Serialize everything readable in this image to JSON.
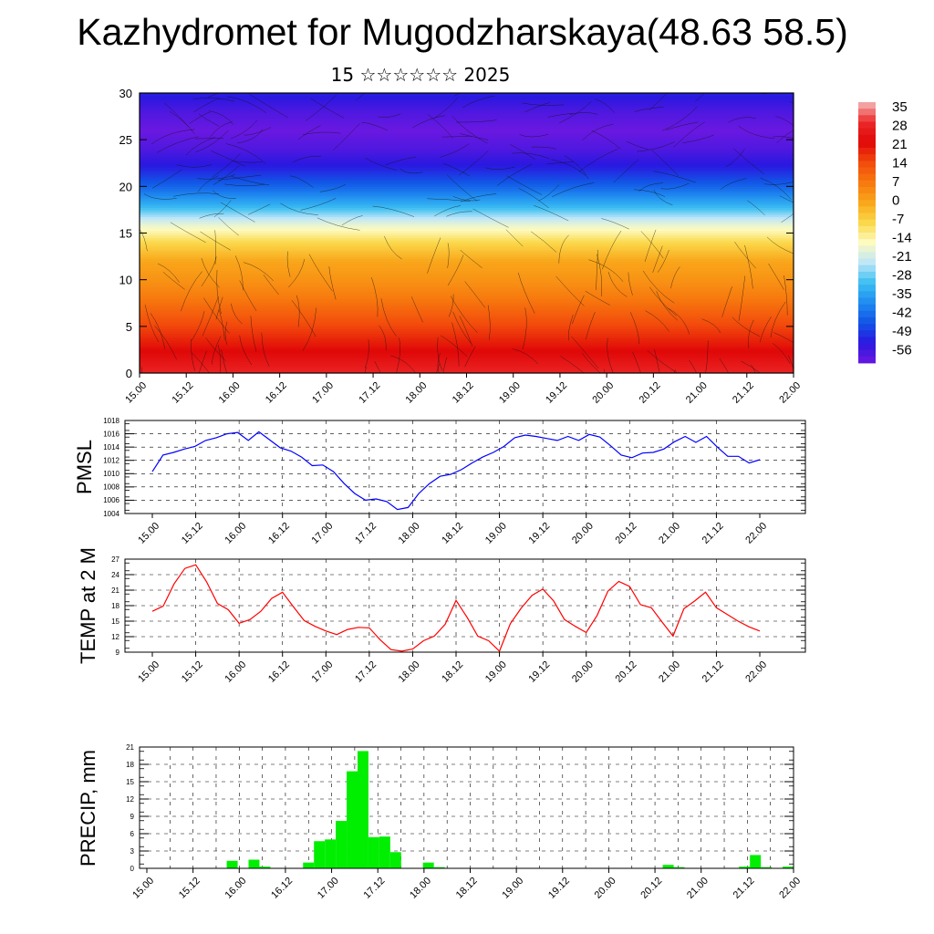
{
  "title": "Kazhydromet for Mugodzharskaya(48.63 58.5)",
  "subtitle": "15 ☆☆☆☆☆☆ 2025",
  "time_labels": [
    "15.00",
    "15.12",
    "16.00",
    "16.12",
    "17.00",
    "17.12",
    "18.00",
    "18.12",
    "19.00",
    "19.12",
    "20.00",
    "20.12",
    "21.00",
    "21.12",
    "22.00"
  ],
  "colorbar": {
    "labels": [
      "35",
      "28",
      "21",
      "14",
      "7",
      "0",
      "-7",
      "-14",
      "-21",
      "-28",
      "-35",
      "-42",
      "-49",
      "-56"
    ],
    "colors": [
      "#f4b8b8",
      "#ee2a2a",
      "#e80808",
      "#f24a0c",
      "#f7790e",
      "#f9a61a",
      "#fbd84a",
      "#fdfbbf",
      "#bfe6f7",
      "#3dbff2",
      "#1f8cf0",
      "#1255e6",
      "#2a18e0",
      "#6a18e0"
    ]
  },
  "chart_data": [
    {
      "type": "heatmap",
      "title": "",
      "ylim": [
        0,
        30
      ],
      "yticks": [
        "0",
        "5",
        "10",
        "15",
        "20",
        "25",
        "30"
      ],
      "x": [
        "15.00",
        "15.12",
        "16.00",
        "16.12",
        "17.00",
        "17.12",
        "18.00",
        "18.12",
        "19.00",
        "19.12",
        "20.00",
        "20.12",
        "21.00",
        "21.12",
        "22.00"
      ],
      "value_range": [
        -56,
        35
      ],
      "levels": [
        0,
        2,
        4,
        6,
        8,
        10,
        12,
        14,
        16,
        18,
        20,
        22,
        24,
        26,
        28,
        30
      ],
      "level_values": [
        27,
        22,
        17,
        12,
        7,
        3,
        0,
        -7,
        -17,
        -30,
        -40,
        -48,
        -53,
        -56,
        -53,
        -48
      ]
    },
    {
      "type": "line",
      "ylabel": "PMSL",
      "ylim": [
        1004,
        1018
      ],
      "yticks": [
        "1004",
        "1006",
        "1008",
        "1010",
        "1012",
        "1014",
        "1016",
        "1018"
      ],
      "color": "#0000ff",
      "series": [
        {
          "values": [
            1010.3,
            1012.8,
            1013.2,
            1013.7,
            1014.1,
            1015.0,
            1015.4,
            1016.0,
            1016.2,
            1015.0,
            1016.3,
            1015.1,
            1013.9,
            1013.4,
            1012.5,
            1011.2,
            1011.3,
            1010.3,
            1008.5,
            1007.0,
            1006.0,
            1006.2,
            1005.8,
            1004.6,
            1004.9,
            1007.0,
            1008.5,
            1009.6,
            1009.9,
            1010.6,
            1011.6,
            1012.5,
            1013.2,
            1014.1,
            1015.4,
            1015.8,
            1015.6,
            1015.3,
            1015.0,
            1015.6,
            1015.0,
            1015.9,
            1015.5,
            1014.2,
            1012.8,
            1012.4,
            1013.1,
            1013.2,
            1013.7,
            1014.8,
            1015.6,
            1014.7,
            1015.6,
            1014.0,
            1012.6,
            1012.6,
            1011.6,
            1012.1
          ]
        }
      ]
    },
    {
      "type": "line",
      "ylabel": "TEMP at 2 M",
      "ylim": [
        9,
        27
      ],
      "yticks": [
        "9",
        "12",
        "15",
        "18",
        "21",
        "24",
        "27"
      ],
      "color": "#ff0000",
      "series": [
        {
          "values": [
            16.9,
            17.9,
            22.2,
            25.2,
            25.9,
            22.6,
            18.4,
            17.2,
            14.6,
            15.3,
            16.9,
            19.4,
            20.6,
            17.8,
            15.1,
            14.0,
            13.1,
            12.4,
            13.4,
            13.8,
            13.7,
            11.4,
            9.5,
            9.2,
            9.6,
            11.2,
            12.1,
            14.4,
            19.0,
            15.8,
            12.1,
            11.2,
            9.2,
            14.5,
            17.5,
            20.0,
            21.2,
            18.9,
            15.3,
            14.0,
            12.8,
            16.1,
            20.8,
            22.7,
            21.7,
            18.2,
            17.6,
            14.8,
            12.1,
            17.4,
            18.9,
            20.6,
            17.6,
            16.3,
            15.0,
            13.9,
            13.1
          ]
        }
      ]
    },
    {
      "type": "bar",
      "ylabel": "PRECIP, mm",
      "ylim": [
        0,
        21
      ],
      "yticks": [
        "0",
        "3",
        "6",
        "9",
        "12",
        "15",
        "18",
        "21"
      ],
      "color": "#00ee00",
      "values": [
        0,
        0,
        0,
        0,
        0,
        0,
        0,
        0,
        1.3,
        0,
        1.5,
        0.3,
        0,
        0,
        0,
        1.0,
        4.7,
        5.0,
        8.2,
        16.8,
        20.3,
        5.4,
        5.5,
        2.8,
        0,
        0,
        1.0,
        0.2,
        0,
        0,
        0,
        0,
        0,
        0,
        0,
        0,
        0,
        0,
        0,
        0,
        0,
        0,
        0,
        0,
        0,
        0,
        0,
        0,
        0.6,
        0.2,
        0,
        0,
        0,
        0,
        0,
        0.3,
        2.3,
        0.2,
        0,
        0.3
      ]
    }
  ]
}
